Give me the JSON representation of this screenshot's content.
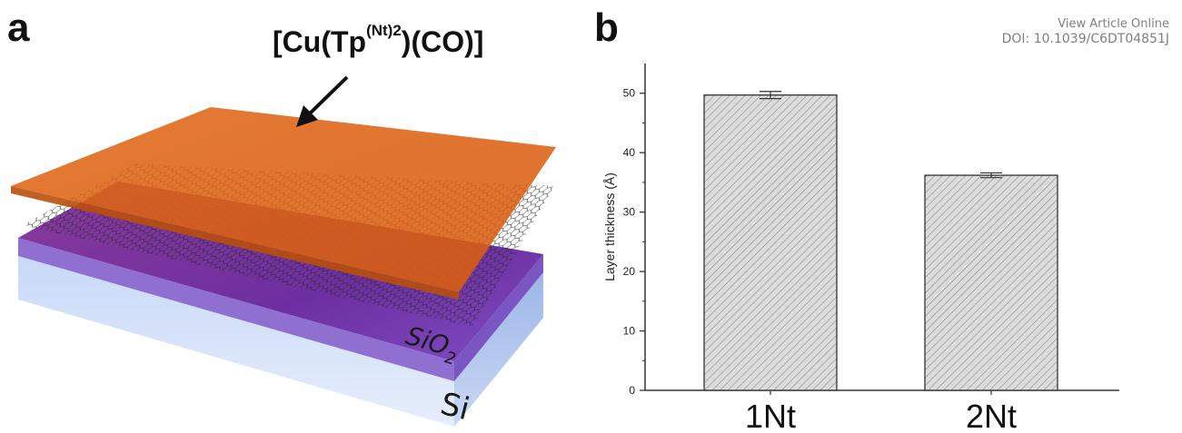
{
  "panel_a": {
    "letter": "a",
    "complex_label": "[Cu(Tp",
    "complex_superscript": "(Nt)2",
    "complex_suffix": ")(CO)]",
    "layer_sio2": "SiO",
    "layer_sio2_sub": "2",
    "layer_si": "Si",
    "colors": {
      "complex_layer": "#e0651a",
      "sio2_layer": "#7b3fa8",
      "si_layer": "#b8cdf5"
    }
  },
  "panel_b": {
    "letter": "b"
  },
  "watermark": {
    "line1": "View Article Online",
    "line2": "DOI: 10.1039/C6DT04851J"
  },
  "chart_data": {
    "type": "bar",
    "categories": [
      "1Nt",
      "2Nt"
    ],
    "values": [
      49.7,
      36.2
    ],
    "errors": [
      0.6,
      0.4
    ],
    "ylabel": "Layer thickness (Å)",
    "ylim": [
      0,
      55
    ],
    "yticks": [
      0,
      10,
      20,
      30,
      40,
      50
    ],
    "bar_fill": "hatched light gray",
    "grid": false
  }
}
